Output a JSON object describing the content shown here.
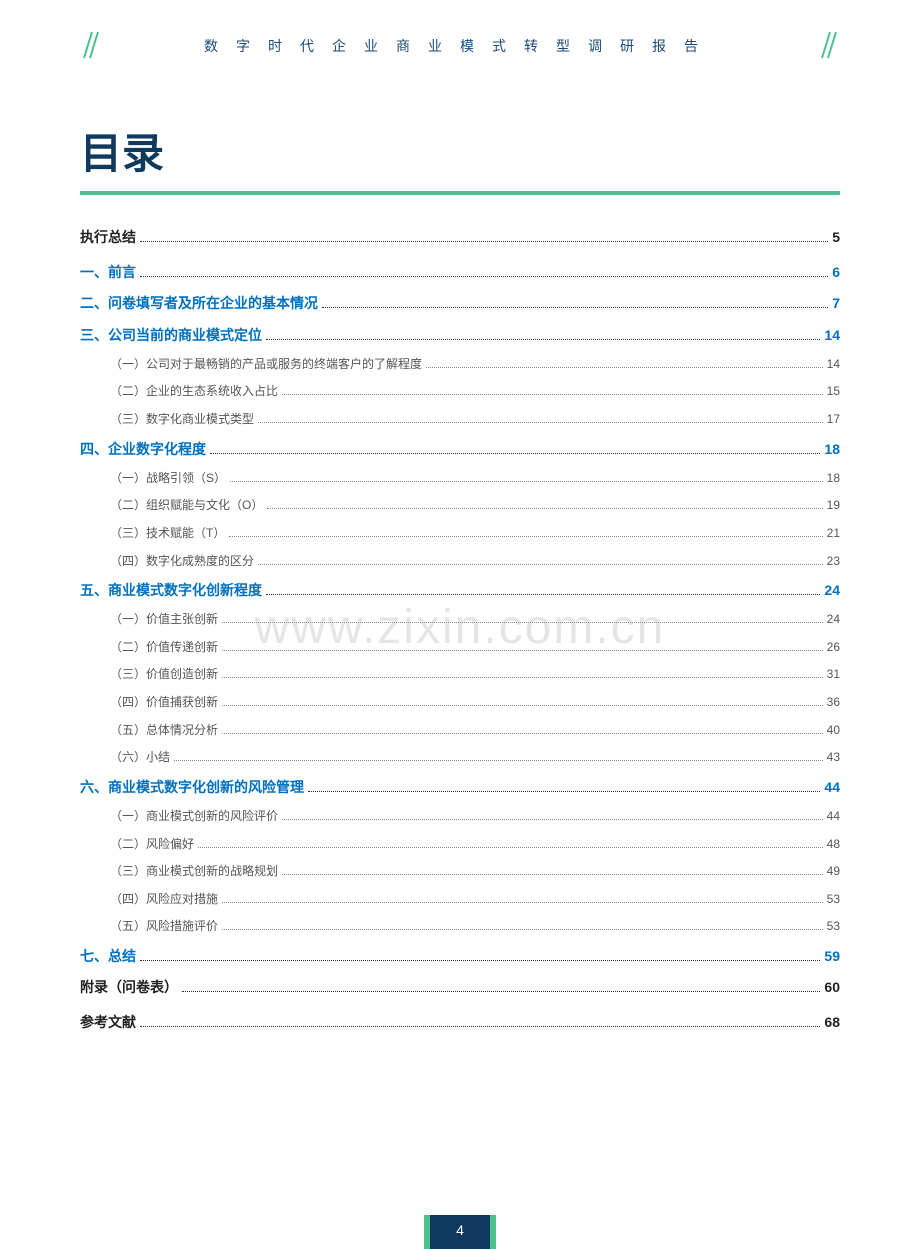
{
  "header": {
    "title": "数字时代企业商业模式转型调研报告"
  },
  "heading": "目录",
  "watermark": "www.zixin.com.cn",
  "pageNumber": "4",
  "colors": {
    "accent_blue": "#0070c0",
    "dark_navy": "#0f3a5f",
    "green": "#4bc18f",
    "text_black": "#222222",
    "text_gray": "#555555"
  },
  "toc": [
    {
      "type": "black",
      "label": "执行总结",
      "page": "5"
    },
    {
      "type": "section",
      "label": "一、前言",
      "page": "6"
    },
    {
      "type": "section",
      "label": "二、问卷填写者及所在企业的基本情况",
      "page": "7"
    },
    {
      "type": "section",
      "label": "三、公司当前的商业模式定位",
      "page": "14"
    },
    {
      "type": "sub",
      "label": "（一）公司对于最畅销的产品或服务的终端客户的了解程度",
      "page": "14"
    },
    {
      "type": "sub",
      "label": "（二）企业的生态系统收入占比",
      "page": "15"
    },
    {
      "type": "sub",
      "label": "（三）数字化商业模式类型",
      "page": "17"
    },
    {
      "type": "section",
      "label": "四、企业数字化程度",
      "page": "18"
    },
    {
      "type": "sub",
      "label": "（一）战略引领（S）",
      "page": "18"
    },
    {
      "type": "sub",
      "label": "（二）组织赋能与文化（O）",
      "page": "19"
    },
    {
      "type": "sub",
      "label": "（三）技术赋能（T）",
      "page": "21"
    },
    {
      "type": "sub",
      "label": "（四）数字化成熟度的区分",
      "page": "23"
    },
    {
      "type": "section",
      "label": "五、商业模式数字化创新程度",
      "page": "24"
    },
    {
      "type": "sub",
      "label": "（一）价值主张创新",
      "page": "24"
    },
    {
      "type": "sub",
      "label": "（二）价值传递创新",
      "page": "26"
    },
    {
      "type": "sub",
      "label": "（三）价值创造创新",
      "page": "31"
    },
    {
      "type": "sub",
      "label": "（四）价值捕获创新",
      "page": "36"
    },
    {
      "type": "sub",
      "label": "（五）总体情况分析",
      "page": "40"
    },
    {
      "type": "sub",
      "label": "（六）小结",
      "page": "43"
    },
    {
      "type": "section",
      "label": "六、商业模式数字化创新的风险管理",
      "page": "44"
    },
    {
      "type": "sub",
      "label": "（一）商业模式创新的风险评价",
      "page": "44"
    },
    {
      "type": "sub",
      "label": "（二）风险偏好",
      "page": "48"
    },
    {
      "type": "sub",
      "label": "（三）商业模式创新的战略规划",
      "page": "49"
    },
    {
      "type": "sub",
      "label": "（四）风险应对措施",
      "page": "53"
    },
    {
      "type": "sub",
      "label": "（五）风险措施评价",
      "page": "53"
    },
    {
      "type": "section",
      "label": "七、总结",
      "page": "59"
    },
    {
      "type": "black",
      "label": "附录（问卷表）",
      "page": "60"
    },
    {
      "type": "black",
      "label": "参考文献",
      "page": "68"
    }
  ]
}
